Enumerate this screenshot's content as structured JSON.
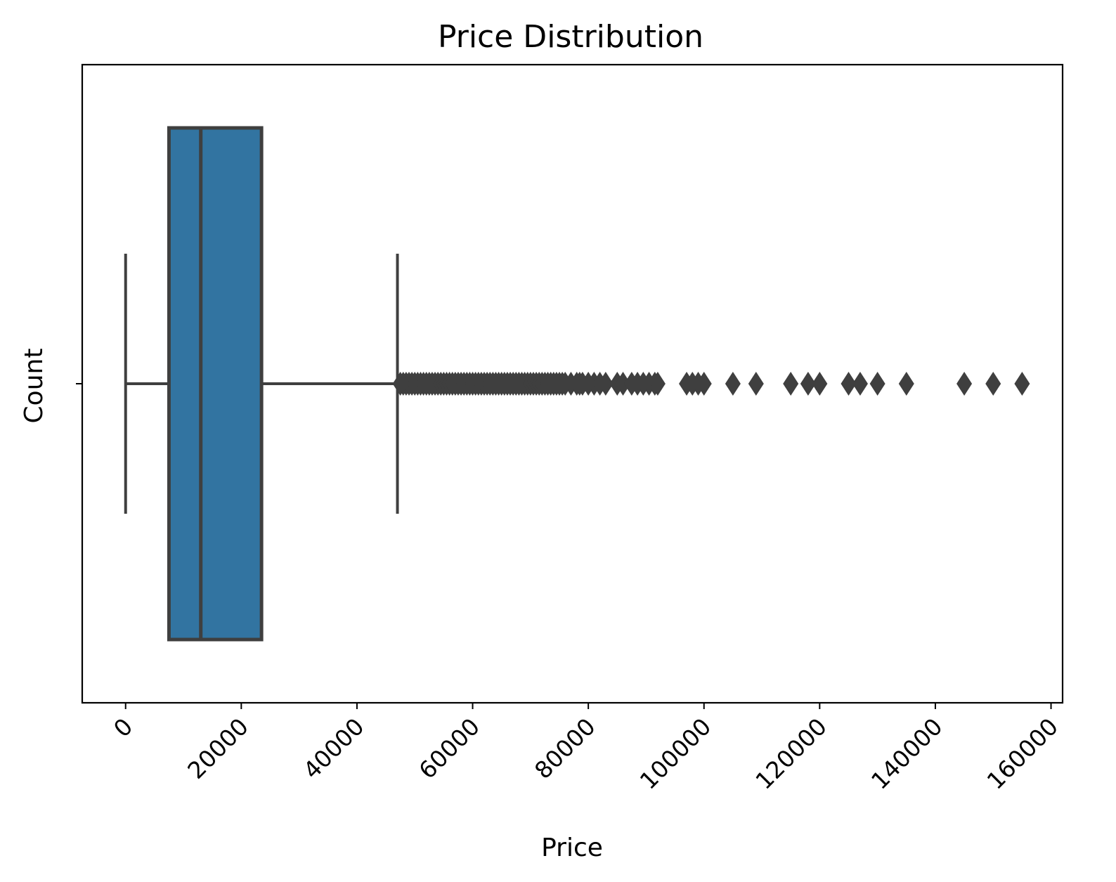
{
  "chart_data": {
    "type": "box",
    "orientation": "horizontal",
    "title": "Price Distribution",
    "xlabel": "Price",
    "ylabel": "Count",
    "xlim": [
      -7500,
      162000
    ],
    "xticks": [
      0,
      20000,
      40000,
      60000,
      80000,
      100000,
      120000,
      140000,
      160000
    ],
    "xtick_labels": [
      "0",
      "20000",
      "40000",
      "60000",
      "80000",
      "100000",
      "120000",
      "140000",
      "160000"
    ],
    "xtick_rotation": 45,
    "grid": false,
    "box": {
      "whisker_low": 0,
      "q1": 7500,
      "median": 13000,
      "q3": 23500,
      "whisker_high": 47000
    },
    "outliers": [
      47500,
      48000,
      48500,
      49000,
      49500,
      50000,
      50500,
      51000,
      51500,
      52000,
      52500,
      53000,
      53500,
      54000,
      54500,
      55000,
      55500,
      56000,
      56500,
      57000,
      57500,
      58000,
      58500,
      59000,
      59500,
      60000,
      60500,
      61000,
      61500,
      62000,
      62500,
      63000,
      63500,
      64000,
      64500,
      65000,
      65500,
      66000,
      66500,
      67000,
      67500,
      68000,
      68500,
      69000,
      69500,
      70000,
      70500,
      71000,
      71500,
      72000,
      72500,
      73000,
      73500,
      74000,
      74500,
      75000,
      75500,
      76000,
      77000,
      78000,
      78500,
      79000,
      80000,
      81000,
      82000,
      83000,
      85000,
      86000,
      87500,
      88500,
      89500,
      90500,
      91500,
      92000,
      97000,
      98000,
      99000,
      100000,
      105000,
      109000,
      115000,
      118000,
      120000,
      125000,
      127000,
      130000,
      135000,
      145000,
      150000,
      155000
    ],
    "colors": {
      "box_fill": "#3274a1",
      "line": "#3f3f3f",
      "outlier": "#3f3f3f"
    }
  }
}
